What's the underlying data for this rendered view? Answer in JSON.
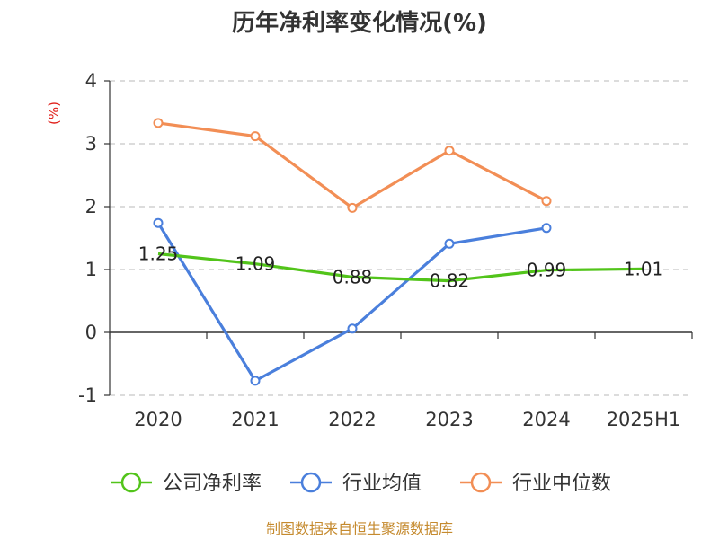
{
  "chart_data": {
    "type": "line",
    "title": "历年净利率变化情况(%)",
    "ylabel": "(%)",
    "categories": [
      "2020",
      "2021",
      "2022",
      "2023",
      "2024",
      "2025H1"
    ],
    "ylim": [
      -1,
      4
    ],
    "yticks": [
      "4",
      "3",
      "2",
      "1",
      "0",
      "-1"
    ],
    "grid": true,
    "legend_position": "bottom",
    "series": [
      {
        "name": "公司净利率",
        "color": "#52c41a",
        "values": [
          1.25,
          1.09,
          0.88,
          0.82,
          0.99,
          1.01
        ],
        "labels": [
          "1.25",
          "1.09",
          "0.88",
          "0.82",
          "0.99",
          "1.01"
        ]
      },
      {
        "name": "行业均值",
        "color": "#4a7fdc",
        "values": [
          1.74,
          -0.77,
          0.06,
          1.41,
          1.66,
          null
        ]
      },
      {
        "name": "行业中位数",
        "color": "#f28e55",
        "values": [
          3.33,
          3.12,
          1.98,
          2.89,
          2.09,
          null
        ]
      }
    ]
  },
  "source": "制图数据来自恒生聚源数据库"
}
